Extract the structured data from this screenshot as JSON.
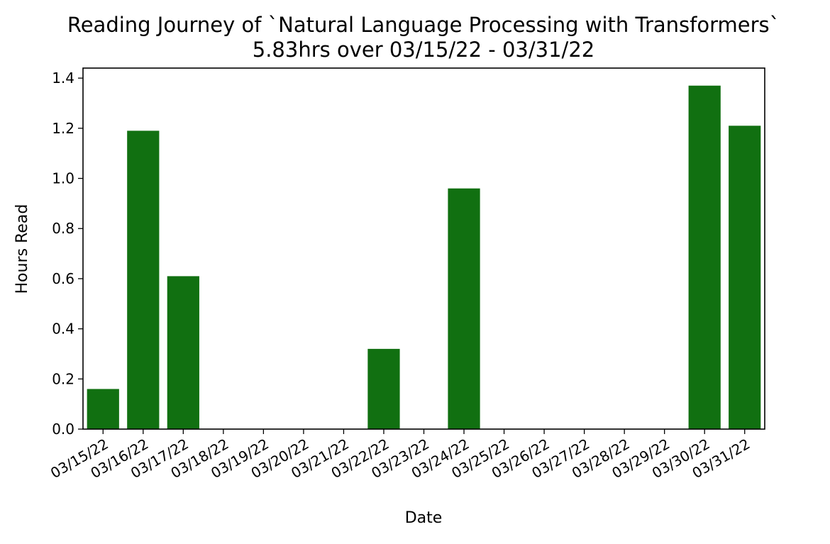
{
  "chart_data": {
    "type": "bar",
    "title": "Reading Journey of `Natural Language Processing with Transformers`",
    "subtitle": "5.83hrs over 03/15/22 - 03/31/22",
    "xlabel": "Date",
    "ylabel": "Hours Read",
    "categories": [
      "03/15/22",
      "03/16/22",
      "03/17/22",
      "03/18/22",
      "03/19/22",
      "03/20/22",
      "03/21/22",
      "03/22/22",
      "03/23/22",
      "03/24/22",
      "03/25/22",
      "03/26/22",
      "03/27/22",
      "03/28/22",
      "03/29/22",
      "03/30/22",
      "03/31/22"
    ],
    "values": [
      0.16,
      1.19,
      0.61,
      0,
      0,
      0,
      0,
      0.32,
      0,
      0.96,
      0,
      0,
      0,
      0,
      0,
      1.37,
      1.21
    ],
    "ylim": [
      0,
      1.44
    ],
    "yticks": [
      "0.0",
      "0.2",
      "0.4",
      "0.6",
      "0.8",
      "1.0",
      "1.2",
      "1.4"
    ],
    "grid": false,
    "bar_color": "#117011"
  }
}
